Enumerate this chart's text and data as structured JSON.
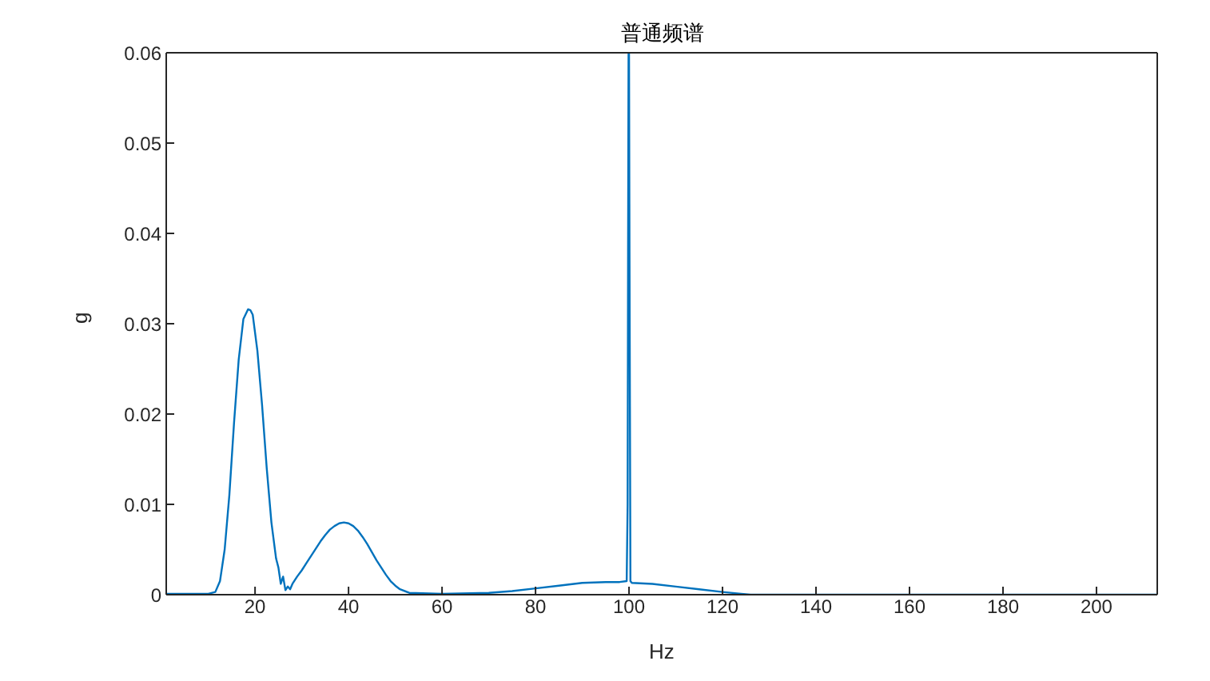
{
  "chart_data": {
    "type": "line",
    "title": "普通频谱",
    "xlabel": "Hz",
    "ylabel": "g",
    "xlim": [
      1,
      213
    ],
    "xticks": [
      20,
      40,
      60,
      80,
      100,
      120,
      140,
      160,
      180,
      200
    ],
    "ylim": [
      0,
      0.06
    ],
    "yticks": [
      0,
      0.01,
      0.02,
      0.03,
      0.04,
      0.05,
      0.06
    ],
    "grid": false,
    "marker": "none",
    "line_style": "solid",
    "series": [
      {
        "color": "#0072bd",
        "x": [
          1,
          10,
          11.5,
          12.5,
          13.5,
          14.5,
          15.5,
          16.5,
          17.5,
          18.5,
          19,
          19.5,
          20.5,
          21.5,
          22.5,
          23.5,
          24.5,
          25,
          25.5,
          26,
          26.5,
          27,
          27.5,
          28,
          29,
          30,
          31,
          32,
          33,
          34,
          35,
          36,
          37,
          38,
          39,
          40,
          41,
          42,
          43,
          44,
          45,
          46,
          47,
          48,
          49,
          50,
          51,
          53,
          60,
          70,
          75,
          80,
          85,
          90,
          95,
          98,
          99.5,
          99.7,
          99.8,
          99.9,
          100,
          100.1,
          100.3,
          100.6,
          105,
          110,
          115,
          120,
          124,
          126,
          150,
          213
        ],
        "values": [
          0.0001,
          0.0001,
          0.0003,
          0.0015,
          0.005,
          0.011,
          0.019,
          0.026,
          0.0305,
          0.0316,
          0.0315,
          0.031,
          0.027,
          0.021,
          0.014,
          0.008,
          0.004,
          0.003,
          0.0012,
          0.002,
          0.0005,
          0.0009,
          0.0006,
          0.0012,
          0.002,
          0.0027,
          0.0035,
          0.0043,
          0.0051,
          0.0059,
          0.0066,
          0.0072,
          0.0076,
          0.0079,
          0.008,
          0.0079,
          0.0076,
          0.0071,
          0.0064,
          0.0056,
          0.0047,
          0.0038,
          0.003,
          0.0022,
          0.0015,
          0.001,
          0.0006,
          0.0002,
          0.0001,
          0.0002,
          0.0004,
          0.0007,
          0.001,
          0.0013,
          0.0014,
          0.0014,
          0.0015,
          0.01,
          0.038,
          0.06,
          0.06,
          0.038,
          0.0015,
          0.0013,
          0.0012,
          0.0009,
          0.0006,
          0.0003,
          0.0001,
          0.0,
          0.0,
          0.0
        ]
      }
    ]
  }
}
